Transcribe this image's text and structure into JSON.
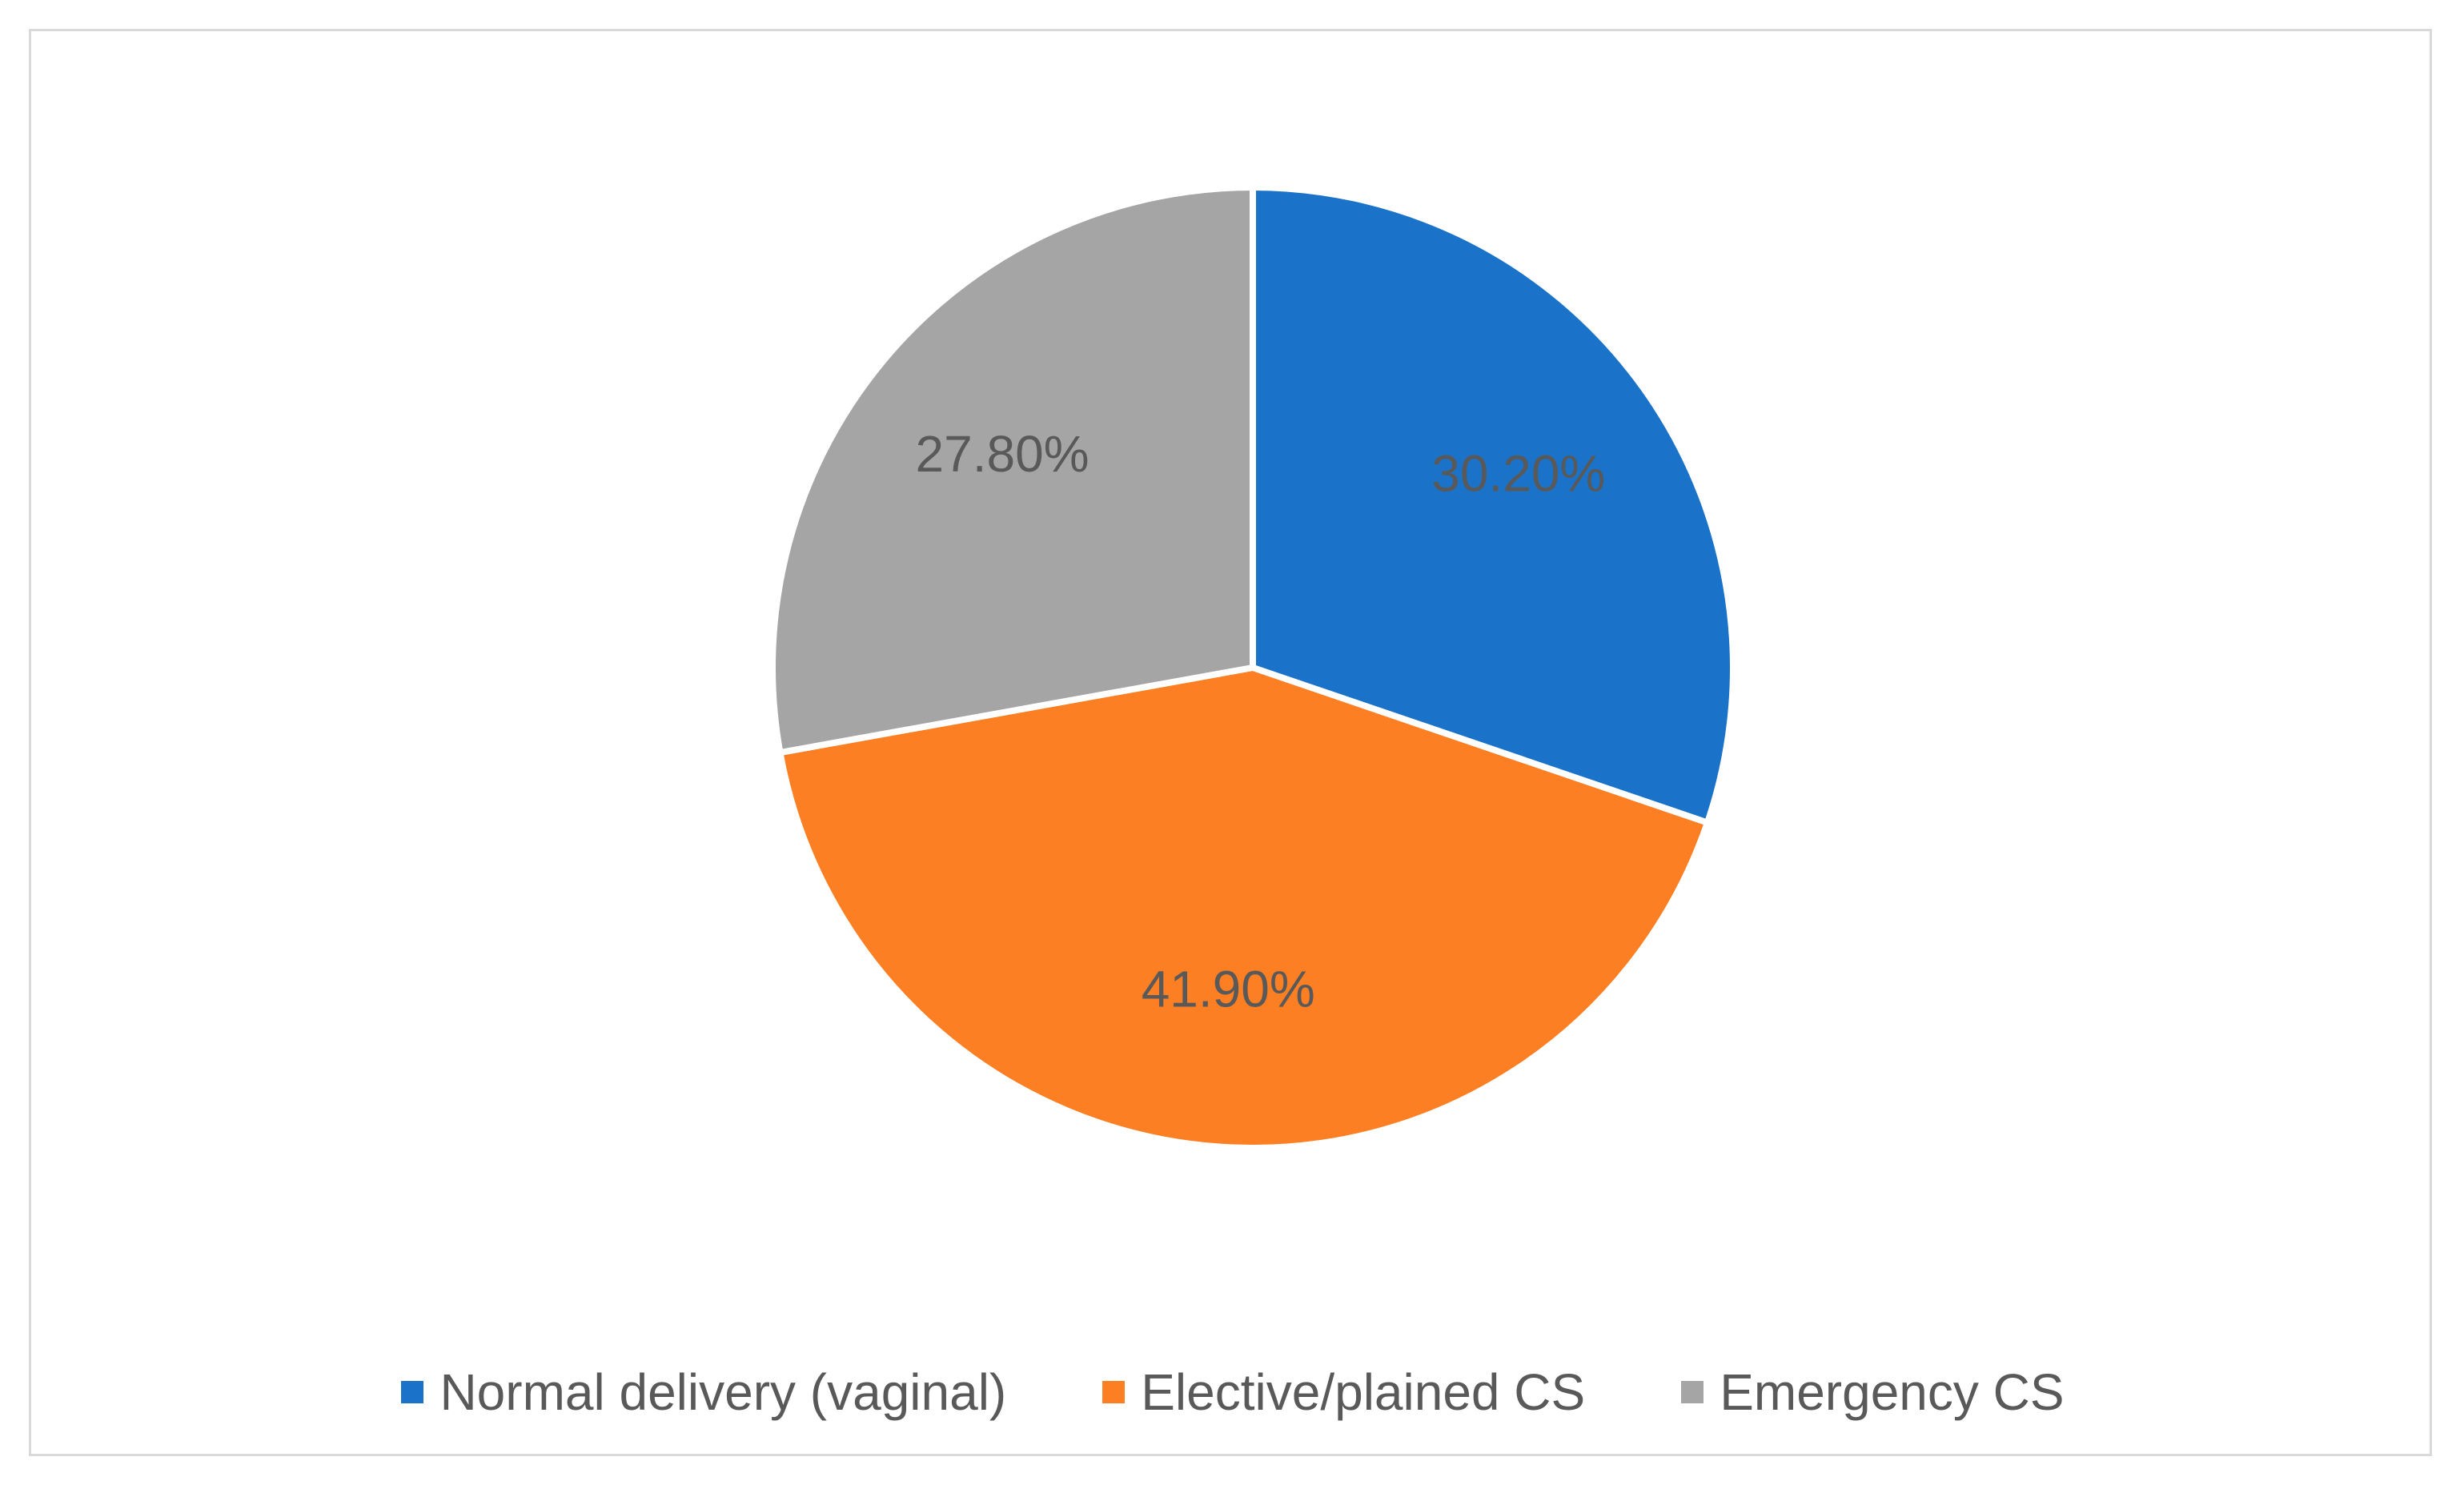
{
  "chart_data": {
    "type": "pie",
    "title": "",
    "slices": [
      {
        "name": "Normal delivery (vaginal)",
        "value": 30.2,
        "label": "30.20%",
        "color": "#1a73c8"
      },
      {
        "name": "Elective/plained CS",
        "value": 41.9,
        "label": "41.90%",
        "color": "#fd7f23"
      },
      {
        "name": "Emergency CS",
        "value": 27.8,
        "label": "27.80%",
        "color": "#a5a5a5"
      }
    ],
    "start_angle_deg": 0,
    "direction": "clockwise",
    "legend_position": "bottom"
  }
}
